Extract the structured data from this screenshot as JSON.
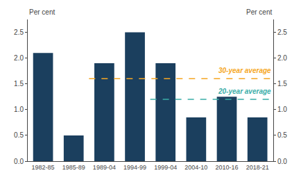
{
  "chart_data": {
    "type": "bar",
    "categories": [
      "1982-85",
      "1985-89",
      "1989-04",
      "1994-99",
      "1999-04",
      "2004-10",
      "2010-16",
      "2018-21"
    ],
    "values": [
      2.1,
      0.5,
      1.9,
      2.5,
      1.9,
      0.85,
      1.25,
      0.85
    ],
    "color": "#1b3f5e",
    "ylabel": "Per cent",
    "y2label": "Per cent",
    "ylim": [
      0.0,
      2.75
    ],
    "yticks": [
      {
        "value": 0.0,
        "label": "0.0"
      },
      0.5,
      {
        "value": 1.0,
        "label": "1.0"
      },
      1.5,
      {
        "value": 2.0,
        "label": "2.0"
      },
      2.5
    ],
    "y2lim": [
      0.0,
      2.75
    ],
    "y2ticks": [
      {
        "value": 0.0,
        "label": "0.0"
      },
      0.5,
      {
        "value": 1.0,
        "label": "1.0"
      },
      1.5,
      {
        "value": 2.0,
        "label": "2.0"
      },
      2.5
    ],
    "grid": false,
    "annotations": [
      {
        "text": "30-year average",
        "value": 1.6,
        "from": "1989-04",
        "color": "#f5a623",
        "line_style": "dashed"
      },
      {
        "text": "20-year average",
        "value": 1.2,
        "from": "1999-04",
        "color": "#3aada8",
        "line_style": "dashed"
      }
    ]
  }
}
